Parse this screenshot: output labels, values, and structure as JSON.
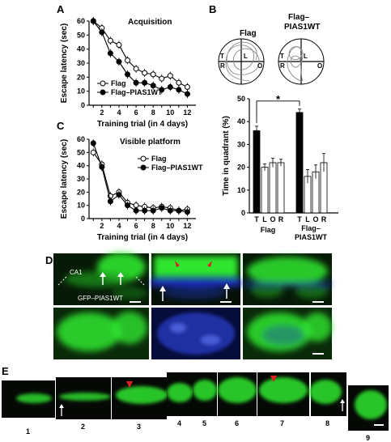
{
  "panels": {
    "A": {
      "letter": "A",
      "title": "Acquisition"
    },
    "B": {
      "letter": "B"
    },
    "C": {
      "letter": "C",
      "title": "Visible platform"
    },
    "D": {
      "letter": "D"
    },
    "E": {
      "letter": "E"
    }
  },
  "chart_data": [
    {
      "type": "line",
      "panel": "A",
      "title": "Acquisition",
      "xlabel": "Training trial (in 4 days)",
      "ylabel": "Escape latency (sec)",
      "x": [
        1,
        2,
        3,
        4,
        5,
        6,
        7,
        8,
        9,
        10,
        11,
        12
      ],
      "xticks": [
        "2",
        "4",
        "6",
        "8",
        "10",
        "12"
      ],
      "yticks": [
        "0",
        "10",
        "20",
        "30",
        "40",
        "50",
        "60"
      ],
      "ylim": [
        0,
        60
      ],
      "legend_placement": "bottom-left",
      "series": [
        {
          "name": "Flag",
          "marker": "open-circle",
          "values": [
            60,
            55,
            46,
            43,
            32,
            26,
            23,
            22,
            19,
            21,
            16,
            13
          ]
        },
        {
          "name": "Flag–PIAS1WT",
          "marker": "filled-circle",
          "values": [
            60,
            52,
            37,
            31,
            22,
            16,
            16,
            14,
            11,
            13,
            11,
            8
          ]
        }
      ]
    },
    {
      "type": "line",
      "panel": "C",
      "title": "Visible platform",
      "xlabel": "Training trial (in 4 days)",
      "ylabel": "Escape latency (sec)",
      "x": [
        1,
        2,
        3,
        4,
        5,
        6,
        7,
        8,
        9,
        10,
        11,
        12
      ],
      "xticks": [
        "2",
        "4",
        "6",
        "8",
        "10",
        "12"
      ],
      "yticks": [
        "0",
        "10",
        "20",
        "30",
        "40",
        "50",
        "60"
      ],
      "ylim": [
        0,
        60
      ],
      "legend_placement": "top-right",
      "series": [
        {
          "name": "Flag",
          "marker": "open-circle",
          "values": [
            50,
            41,
            17,
            20,
            12,
            10,
            9,
            8,
            9,
            8,
            6,
            7
          ]
        },
        {
          "name": "Flag–PIAS1WT",
          "marker": "filled-circle",
          "values": [
            57,
            39,
            13,
            18,
            10,
            6,
            6,
            6,
            8,
            6,
            6,
            5
          ]
        }
      ]
    },
    {
      "type": "bar",
      "panel": "B",
      "ylabel": "Time in quadrant (%)",
      "yticks": [
        "0",
        "10",
        "20",
        "30",
        "40",
        "50"
      ],
      "ylim": [
        0,
        50
      ],
      "significance": "*",
      "groups": [
        {
          "name": "Flag",
          "categories": [
            "T",
            "L",
            "O",
            "R"
          ],
          "values": [
            36,
            20,
            22,
            22
          ],
          "errors": [
            2,
            1.5,
            2,
            1.5
          ]
        },
        {
          "name": "Flag–PIAS1WT",
          "categories": [
            "T",
            "L",
            "O",
            "R"
          ],
          "values": [
            44,
            16,
            18,
            22
          ],
          "errors": [
            1.5,
            3,
            3,
            4
          ]
        }
      ]
    }
  ],
  "swim": {
    "flag_label": "Flag",
    "pias_label": "Flag–\nPIAS1WT",
    "quadrants": [
      "T",
      "R",
      "L",
      "O"
    ]
  },
  "histology": {
    "ca1_label": "CA1",
    "gfp_label": "GFP–PIAS1WT",
    "colors": {
      "green": "#2ee62e",
      "blue": "#2030d8",
      "arrow": "#ffffff",
      "red_arrow": "#e02020"
    }
  },
  "sections": [
    "1",
    "2",
    "3",
    "4",
    "5",
    "6",
    "7",
    "8",
    "9"
  ]
}
